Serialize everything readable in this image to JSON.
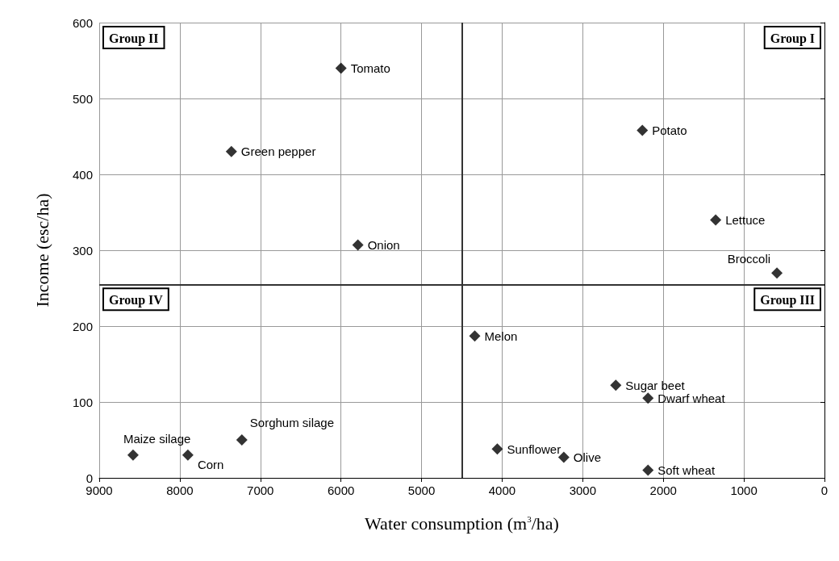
{
  "chart_data": {
    "type": "scatter",
    "xlabel": "Water consumption (m$^{3}$/ha)",
    "ylabel": "Income (esc/ha)",
    "x": [
      6000,
      7360,
      5790,
      2260,
      1350,
      590,
      4340,
      2590,
      2190,
      4060,
      3235,
      2190,
      8580,
      7900,
      7230
    ],
    "values": [
      540,
      430,
      307,
      458,
      340,
      270,
      187,
      122,
      105,
      38,
      27,
      10,
      30,
      30,
      50
    ],
    "color": "#000000",
    "marker": "diamond",
    "grid": true,
    "xlim": [
      9000,
      0
    ],
    "xticks": [
      9000,
      8000,
      7000,
      6000,
      5000,
      4000,
      3000,
      2000,
      1000,
      0
    ],
    "ylim": [
      0,
      600
    ],
    "yticks": [
      0,
      100,
      200,
      300,
      400,
      500,
      600
    ],
    "ref_lines": [
      {
        "axis": "x",
        "value": 4500,
        "color": "#333333"
      },
      {
        "axis": "y",
        "value": 255,
        "color": "#333333"
      }
    ],
    "annotations": [
      "Group II",
      "Group I",
      "Group IV",
      "Group III",
      {
        "text": "Tomato",
        "x": 6000,
        "y": 540
      },
      {
        "text": "Green pepper",
        "x": 7360,
        "y": 430
      },
      {
        "text": "Onion",
        "x": 5790,
        "y": 307
      },
      {
        "text": "Potato",
        "x": 2260,
        "y": 458
      },
      {
        "text": "Lettuce",
        "x": 1350,
        "y": 340
      },
      {
        "text": "Broccoli",
        "x": 590,
        "y": 270
      },
      {
        "text": "Melon",
        "x": 4340,
        "y": 187
      },
      {
        "text": "Sugar beet",
        "x": 2590,
        "y": 122
      },
      {
        "text": "Dwarf wheat",
        "x": 2190,
        "y": 105
      },
      {
        "text": "Sunflower",
        "x": 4060,
        "y": 38
      },
      {
        "text": "Olive",
        "x": 3235,
        "y": 27
      },
      {
        "text": "Soft wheat",
        "x": 2190,
        "y": 10
      },
      {
        "text": "Maize silage",
        "x": 8580,
        "y": 30
      },
      {
        "text": "Corn",
        "x": 7900,
        "y": 30
      },
      {
        "text": "Sorghum silage",
        "x": 7230,
        "y": 50
      }
    ]
  }
}
